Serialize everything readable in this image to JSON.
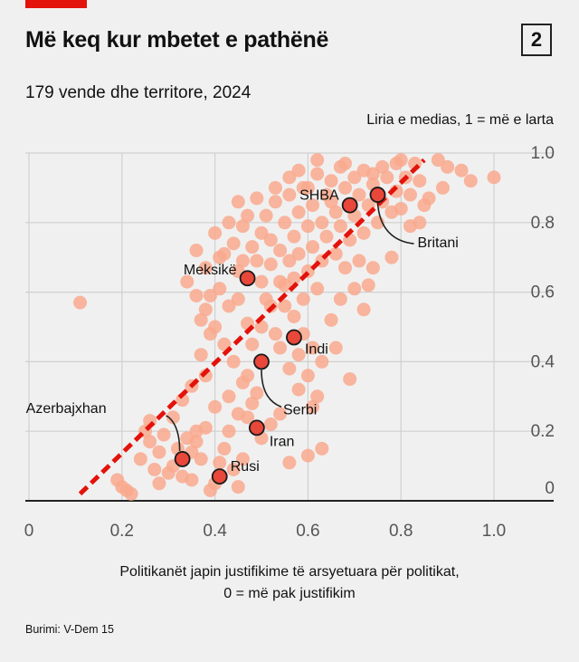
{
  "header": {
    "title": "Më keq kur mbetet e pathënë",
    "badge": "2",
    "subtitle": "179 vende dhe territore, 2024"
  },
  "axes": {
    "ylabel": "Liria e medias, 1 = më e larta",
    "xlabel_line1": "Politikanët japin justifikime të arsyetuara për politikat,",
    "xlabel_line2": "0 = më pak justifikim"
  },
  "source": "Burimi: V-Dem 15",
  "colors": {
    "accent": "#e3120b",
    "dots": "#f9a98e",
    "highlight": "#e8473a",
    "trend": "#e3120b"
  },
  "chart_data": {
    "type": "scatter",
    "xlim": [
      0,
      1
    ],
    "ylim": [
      0,
      1
    ],
    "x_ticks": [
      "0",
      "0.2",
      "0.4",
      "0.6",
      "0.8",
      "1.0"
    ],
    "y_ticks": [
      "0.2",
      "0.4",
      "0.6",
      "0.8",
      "1.0"
    ],
    "grid": true,
    "trend_line": [
      [
        0.11,
        0.02
      ],
      [
        0.85,
        0.98
      ]
    ],
    "highlighted": [
      {
        "label": "SHBA",
        "x": 0.69,
        "y": 0.85
      },
      {
        "label": "Britani",
        "x": 0.75,
        "y": 0.88
      },
      {
        "label": "Meksikë",
        "x": 0.47,
        "y": 0.64
      },
      {
        "label": "Indi",
        "x": 0.57,
        "y": 0.47
      },
      {
        "label": "Serbi",
        "x": 0.5,
        "y": 0.4
      },
      {
        "label": "Iran",
        "x": 0.49,
        "y": 0.21
      },
      {
        "label": "Azerbajxhan",
        "x": 0.33,
        "y": 0.12
      },
      {
        "label": "Rusi",
        "x": 0.41,
        "y": 0.07
      }
    ],
    "points": [
      [
        0.11,
        0.57
      ],
      [
        0.2,
        0.04
      ],
      [
        0.21,
        0.03
      ],
      [
        0.22,
        0.02
      ],
      [
        0.19,
        0.06
      ],
      [
        0.25,
        0.2
      ],
      [
        0.26,
        0.23
      ],
      [
        0.24,
        0.12
      ],
      [
        0.27,
        0.09
      ],
      [
        0.28,
        0.14
      ],
      [
        0.3,
        0.08
      ],
      [
        0.31,
        0.1
      ],
      [
        0.33,
        0.07
      ],
      [
        0.35,
        0.14
      ],
      [
        0.35,
        0.06
      ],
      [
        0.36,
        0.17
      ],
      [
        0.37,
        0.12
      ],
      [
        0.38,
        0.21
      ],
      [
        0.39,
        0.03
      ],
      [
        0.4,
        0.05
      ],
      [
        0.41,
        0.11
      ],
      [
        0.42,
        0.15
      ],
      [
        0.43,
        0.2
      ],
      [
        0.44,
        0.09
      ],
      [
        0.45,
        0.04
      ],
      [
        0.46,
        0.12
      ],
      [
        0.47,
        0.24
      ],
      [
        0.48,
        0.28
      ],
      [
        0.49,
        0.31
      ],
      [
        0.5,
        0.18
      ],
      [
        0.52,
        0.22
      ],
      [
        0.54,
        0.25
      ],
      [
        0.56,
        0.11
      ],
      [
        0.6,
        0.13
      ],
      [
        0.63,
        0.15
      ],
      [
        0.6,
        0.36
      ],
      [
        0.62,
        0.3
      ],
      [
        0.58,
        0.42
      ],
      [
        0.54,
        0.44
      ],
      [
        0.46,
        0.34
      ],
      [
        0.44,
        0.4
      ],
      [
        0.42,
        0.45
      ],
      [
        0.4,
        0.5
      ],
      [
        0.38,
        0.55
      ],
      [
        0.36,
        0.59
      ],
      [
        0.34,
        0.63
      ],
      [
        0.36,
        0.72
      ],
      [
        0.38,
        0.67
      ],
      [
        0.4,
        0.77
      ],
      [
        0.42,
        0.71
      ],
      [
        0.44,
        0.74
      ],
      [
        0.45,
        0.66
      ],
      [
        0.46,
        0.79
      ],
      [
        0.48,
        0.73
      ],
      [
        0.49,
        0.69
      ],
      [
        0.5,
        0.77
      ],
      [
        0.5,
        0.63
      ],
      [
        0.51,
        0.82
      ],
      [
        0.52,
        0.75
      ],
      [
        0.52,
        0.68
      ],
      [
        0.53,
        0.86
      ],
      [
        0.54,
        0.72
      ],
      [
        0.54,
        0.63
      ],
      [
        0.55,
        0.8
      ],
      [
        0.55,
        0.56
      ],
      [
        0.56,
        0.69
      ],
      [
        0.56,
        0.88
      ],
      [
        0.57,
        0.76
      ],
      [
        0.57,
        0.64
      ],
      [
        0.58,
        0.83
      ],
      [
        0.58,
        0.71
      ],
      [
        0.59,
        0.58
      ],
      [
        0.59,
        0.9
      ],
      [
        0.6,
        0.79
      ],
      [
        0.6,
        0.66
      ],
      [
        0.61,
        0.85
      ],
      [
        0.61,
        0.73
      ],
      [
        0.62,
        0.61
      ],
      [
        0.62,
        0.94
      ],
      [
        0.63,
        0.8
      ],
      [
        0.63,
        0.69
      ],
      [
        0.64,
        0.88
      ],
      [
        0.64,
        0.76
      ],
      [
        0.65,
        0.52
      ],
      [
        0.65,
        0.92
      ],
      [
        0.66,
        0.83
      ],
      [
        0.66,
        0.71
      ],
      [
        0.67,
        0.96
      ],
      [
        0.67,
        0.79
      ],
      [
        0.68,
        0.67
      ],
      [
        0.68,
        0.9
      ],
      [
        0.69,
        0.75
      ],
      [
        0.7,
        0.93
      ],
      [
        0.7,
        0.82
      ],
      [
        0.71,
        0.88
      ],
      [
        0.71,
        0.69
      ],
      [
        0.72,
        0.95
      ],
      [
        0.72,
        0.77
      ],
      [
        0.73,
        0.85
      ],
      [
        0.73,
        0.62
      ],
      [
        0.74,
        0.91
      ],
      [
        0.75,
        0.8
      ],
      [
        0.76,
        0.96
      ],
      [
        0.76,
        0.86
      ],
      [
        0.77,
        0.93
      ],
      [
        0.78,
        0.7
      ],
      [
        0.79,
        0.89
      ],
      [
        0.79,
        0.97
      ],
      [
        0.8,
        0.84
      ],
      [
        0.81,
        0.93
      ],
      [
        0.82,
        0.88
      ],
      [
        0.83,
        0.97
      ],
      [
        0.84,
        0.92
      ],
      [
        0.84,
        0.8
      ],
      [
        0.85,
        0.85
      ],
      [
        0.9,
        0.96
      ],
      [
        0.89,
        0.9
      ],
      [
        0.93,
        0.95
      ],
      [
        0.95,
        0.92
      ],
      [
        1.0,
        0.93
      ],
      [
        0.45,
        0.58
      ],
      [
        0.47,
        0.51
      ],
      [
        0.43,
        0.56
      ],
      [
        0.41,
        0.61
      ],
      [
        0.39,
        0.48
      ],
      [
        0.37,
        0.42
      ],
      [
        0.35,
        0.33
      ],
      [
        0.33,
        0.29
      ],
      [
        0.31,
        0.24
      ],
      [
        0.29,
        0.19
      ],
      [
        0.48,
        0.45
      ],
      [
        0.5,
        0.5
      ],
      [
        0.52,
        0.56
      ],
      [
        0.55,
        0.62
      ],
      [
        0.57,
        0.53
      ],
      [
        0.59,
        0.48
      ],
      [
        0.61,
        0.44
      ],
      [
        0.63,
        0.4
      ],
      [
        0.66,
        0.44
      ],
      [
        0.69,
        0.35
      ],
      [
        0.67,
        0.58
      ],
      [
        0.7,
        0.61
      ],
      [
        0.72,
        0.55
      ],
      [
        0.74,
        0.67
      ],
      [
        0.45,
        0.86
      ],
      [
        0.47,
        0.82
      ],
      [
        0.43,
        0.8
      ],
      [
        0.53,
        0.9
      ],
      [
        0.56,
        0.93
      ],
      [
        0.58,
        0.95
      ],
      [
        0.62,
        0.98
      ],
      [
        0.65,
        0.86
      ],
      [
        0.68,
        0.97
      ],
      [
        0.74,
        0.94
      ],
      [
        0.78,
        0.83
      ],
      [
        0.82,
        0.79
      ],
      [
        0.86,
        0.87
      ],
      [
        0.88,
        0.98
      ],
      [
        0.8,
        0.98
      ],
      [
        0.6,
        0.9
      ],
      [
        0.37,
        0.52
      ],
      [
        0.39,
        0.59
      ],
      [
        0.41,
        0.7
      ],
      [
        0.46,
        0.69
      ],
      [
        0.49,
        0.87
      ],
      [
        0.51,
        0.58
      ],
      [
        0.53,
        0.48
      ],
      [
        0.56,
        0.38
      ],
      [
        0.58,
        0.32
      ],
      [
        0.61,
        0.27
      ],
      [
        0.43,
        0.3
      ],
      [
        0.45,
        0.25
      ],
      [
        0.47,
        0.36
      ],
      [
        0.38,
        0.36
      ],
      [
        0.4,
        0.27
      ],
      [
        0.36,
        0.2
      ],
      [
        0.34,
        0.18
      ],
      [
        0.32,
        0.15
      ],
      [
        0.28,
        0.05
      ],
      [
        0.26,
        0.17
      ]
    ]
  }
}
